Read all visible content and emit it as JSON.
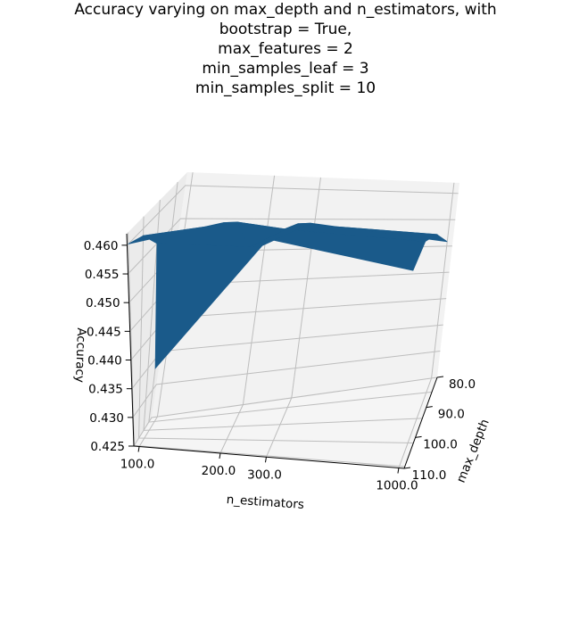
{
  "chart_data": {
    "type": "surface3d",
    "title_lines": [
      "Accuracy varying on max_depth and n_estimators, with",
      "bootstrap = True,",
      "max_features = 2",
      "min_samples_leaf = 3",
      "min_samples_split = 10"
    ],
    "xlabel": "n_estimators",
    "ylabel": "max_depth",
    "zlabel": "Accuracy",
    "x_ticks": [
      "100.0",
      "200.0",
      "300.0",
      "1000.0"
    ],
    "y_ticks": [
      "80.0",
      "90.0",
      "100.0",
      "110.0"
    ],
    "z_ticks": [
      "0.425",
      "0.430",
      "0.435",
      "0.440",
      "0.445",
      "0.450",
      "0.455",
      "0.460"
    ],
    "x": [
      "100.0",
      "200.0",
      "300.0",
      "1000.0"
    ],
    "y": [
      "80.0",
      "90.0",
      "100.0",
      "110.0"
    ],
    "z": [
      [
        0.46,
        0.4645,
        0.462,
        0.458
      ],
      [
        0.4588,
        0.4618,
        0.461,
        0.46
      ],
      [
        0.455,
        0.4548,
        0.459,
        0.458
      ],
      [
        0.4333,
        0.4522,
        0.456,
        0.453
      ]
    ],
    "zlim": [
      0.425,
      0.462
    ],
    "surface_color": "#1a5a8a",
    "grid": true
  }
}
